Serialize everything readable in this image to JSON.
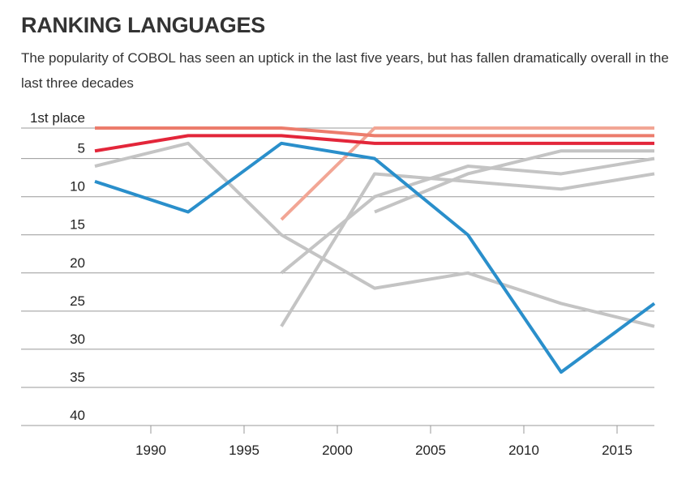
{
  "chart_data": {
    "type": "line",
    "title": "RANKING LANGUAGES",
    "subtitle": "The popularity of COBOL has seen an uptick in the last five years, but has fallen dramatically overall in the last three decades",
    "x": [
      1987,
      1992,
      1997,
      2002,
      2007,
      2012,
      2017
    ],
    "xlim": [
      1987,
      2017
    ],
    "xticks": [
      1990,
      1995,
      2000,
      2005,
      2010,
      2015
    ],
    "ylim": [
      40,
      1
    ],
    "yticks": [
      {
        "value": 1,
        "label": "1st place"
      },
      5,
      10,
      15,
      20,
      25,
      30,
      35,
      40
    ],
    "grid": true,
    "series": [
      {
        "color": "#c4c4c4",
        "values": [
          6,
          3,
          15,
          22,
          20,
          24,
          27
        ]
      },
      {
        "color": "#c4c4c4",
        "values": [
          null,
          null,
          20,
          10,
          6,
          7,
          5
        ]
      },
      {
        "color": "#c4c4c4",
        "values": [
          null,
          null,
          27,
          7,
          8,
          9,
          7
        ]
      },
      {
        "color": "#c4c4c4",
        "values": [
          null,
          null,
          null,
          12,
          7,
          4,
          4
        ]
      },
      {
        "color": "#f2a695",
        "values": [
          null,
          null,
          13,
          1,
          1,
          1,
          1
        ]
      },
      {
        "color": "#ec7c6c",
        "values": [
          1,
          1,
          1,
          2,
          2,
          2,
          2
        ]
      },
      {
        "color": "#e3263a",
        "values": [
          4,
          2,
          2,
          3,
          3,
          3,
          3
        ]
      },
      {
        "color": "#2a8fcb",
        "values": [
          8,
          12,
          3,
          5,
          15,
          33,
          24
        ]
      }
    ]
  }
}
